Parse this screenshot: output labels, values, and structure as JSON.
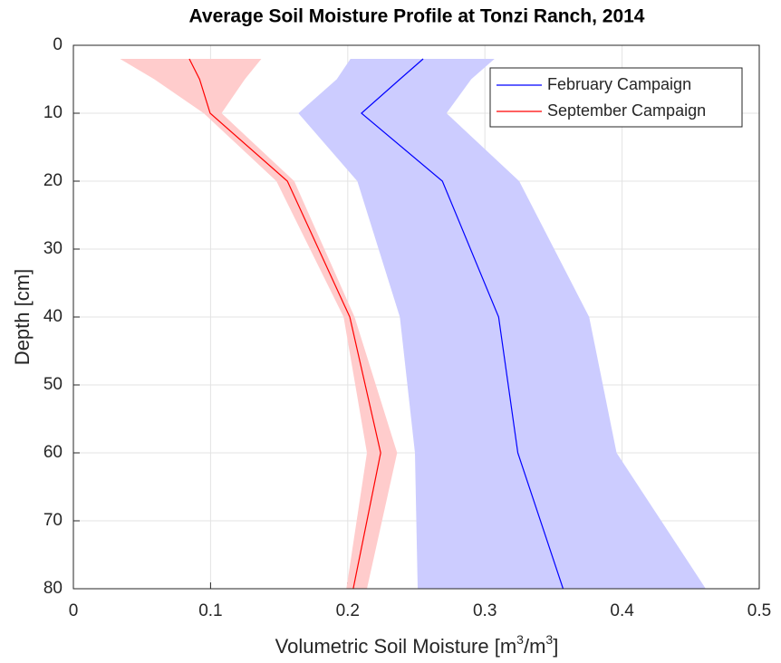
{
  "chart_data": {
    "type": "line",
    "title": "Average Soil Moisture Profile at Tonzi Ranch, 2014",
    "xlabel": "Volumetric Soil Moisture [m3/m3]",
    "ylabel": "Depth [cm]",
    "depth": [
      2,
      5,
      10,
      20,
      40,
      60,
      80
    ],
    "series": [
      {
        "name": "February Campaign",
        "color": "#0000ff",
        "band_color": "#ccccff",
        "values": [
          0.255,
          0.238,
          0.21,
          0.269,
          0.31,
          0.324,
          0.357
        ],
        "lower": [
          0.202,
          0.192,
          0.164,
          0.207,
          0.238,
          0.249,
          0.251
        ],
        "upper": [
          0.307,
          0.29,
          0.272,
          0.325,
          0.376,
          0.396,
          0.461
        ]
      },
      {
        "name": "September Campaign",
        "color": "#ff0000",
        "band_color": "#ffcccc",
        "values": [
          0.0845,
          0.092,
          0.0997,
          0.156,
          0.2015,
          0.224,
          0.204
        ],
        "lower": [
          0.034,
          0.059,
          0.095,
          0.148,
          0.197,
          0.214,
          0.199
        ],
        "upper": [
          0.137,
          0.125,
          0.108,
          0.161,
          0.205,
          0.236,
          0.214
        ]
      }
    ],
    "xlim": [
      0,
      0.5
    ],
    "xticks": [
      0,
      0.1,
      0.2,
      0.3,
      0.4,
      0.5
    ],
    "ylim": [
      0,
      80
    ],
    "yticks": [
      0,
      10,
      20,
      30,
      40,
      50,
      60,
      70,
      80
    ],
    "y_reversed": true,
    "grid": true,
    "legend": "northeast"
  }
}
